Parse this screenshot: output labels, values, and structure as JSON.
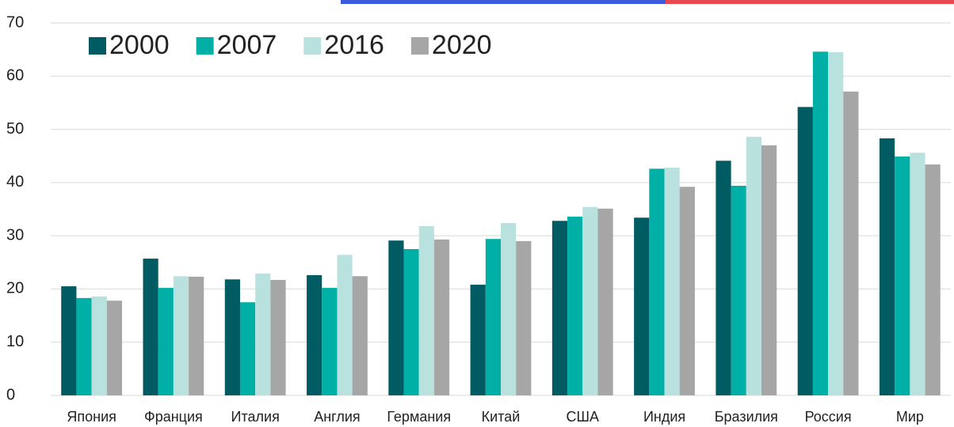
{
  "chart_data": {
    "type": "bar",
    "categories": [
      "Япония",
      "Франция",
      "Италия",
      "Англия",
      "Германия",
      "Китай",
      "США",
      "Индия",
      "Бразилия",
      "Россия",
      "Мир"
    ],
    "series": [
      {
        "name": "2000",
        "color": "#005b63",
        "values": [
          20.5,
          25.7,
          21.8,
          22.6,
          29.1,
          20.8,
          32.8,
          33.4,
          44.1,
          54.2,
          48.3
        ]
      },
      {
        "name": "2007",
        "color": "#00b0a6",
        "values": [
          18.3,
          20.2,
          17.5,
          20.2,
          27.5,
          29.4,
          33.6,
          42.6,
          39.4,
          64.6,
          44.9
        ]
      },
      {
        "name": "2016",
        "color": "#b9e2de",
        "values": [
          18.6,
          22.4,
          22.9,
          26.4,
          31.8,
          32.4,
          35.4,
          42.8,
          48.6,
          64.5,
          45.6
        ]
      },
      {
        "name": "2020",
        "color": "#a6a6a6",
        "values": [
          17.8,
          22.3,
          21.7,
          22.4,
          29.3,
          29.0,
          35.1,
          39.2,
          47.0,
          57.1,
          43.4
        ]
      }
    ],
    "ylim": [
      0,
      70
    ],
    "yticks": [
      0,
      10,
      20,
      30,
      40,
      50,
      60,
      70
    ],
    "grid": true,
    "legend": "upper left"
  }
}
